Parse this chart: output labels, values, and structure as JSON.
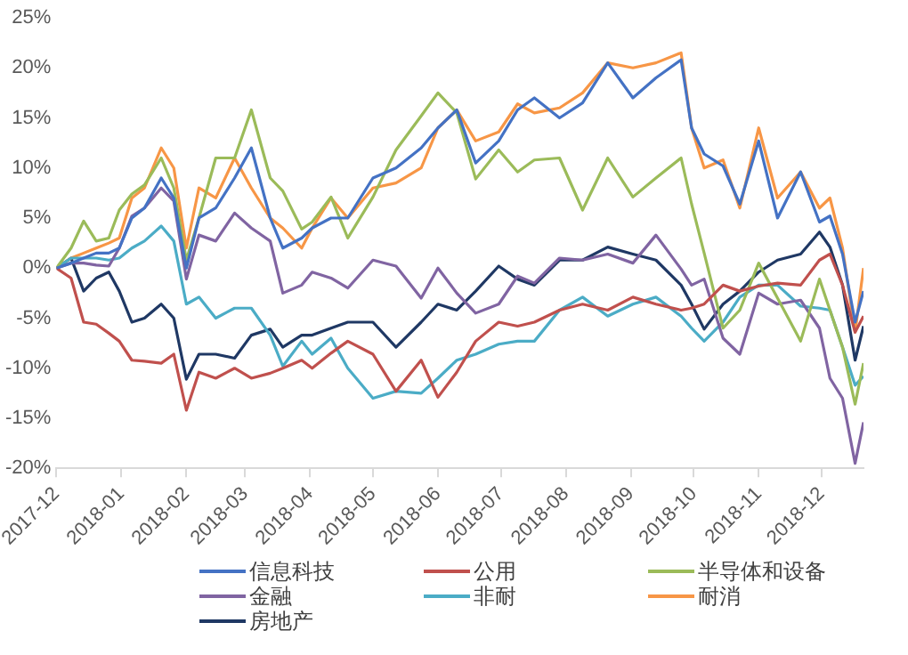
{
  "chart_data": {
    "type": "line",
    "x": [
      "2017-12-01",
      "2017-12-08",
      "2017-12-14",
      "2017-12-20",
      "2017-12-26",
      "2017-12-31",
      "2018-01-06",
      "2018-01-12",
      "2018-01-20",
      "2018-01-26",
      "2018-02-01",
      "2018-02-07",
      "2018-02-15",
      "2018-02-24",
      "2018-03-04",
      "2018-03-13",
      "2018-03-19",
      "2018-03-28",
      "2018-04-02",
      "2018-04-11",
      "2018-04-19",
      "2018-05-01",
      "2018-05-12",
      "2018-05-24",
      "2018-06-01",
      "2018-06-10",
      "2018-06-19",
      "2018-06-30",
      "2018-07-09",
      "2018-07-17",
      "2018-07-29",
      "2018-08-09",
      "2018-08-21",
      "2018-09-02",
      "2018-09-13",
      "2018-09-25",
      "2018-09-30",
      "2018-10-06",
      "2018-10-15",
      "2018-10-23",
      "2018-11-01",
      "2018-11-10",
      "2018-11-21",
      "2018-11-30",
      "2018-12-05",
      "2018-12-11",
      "2018-12-17",
      "2018-12-21"
    ],
    "series": [
      {
        "name": "信息科技",
        "color": "#4472c4",
        "values": [
          0,
          0.5,
          1,
          1.5,
          1.5,
          2,
          5,
          6,
          9,
          7,
          0,
          5,
          6,
          9,
          12,
          5,
          2,
          3,
          4,
          5,
          5,
          9,
          10,
          12,
          14,
          15.8,
          10.5,
          12.7,
          15.8,
          17,
          15,
          16.5,
          20.5,
          17,
          19,
          20.8,
          14,
          11.4,
          10.2,
          6.4,
          12.7,
          5,
          9.6,
          4.6,
          5.2,
          1.4,
          -5.4,
          -2.3
        ]
      },
      {
        "name": "公用",
        "color": "#c0504d",
        "values": [
          0,
          -1,
          -5.4,
          -5.6,
          -6.5,
          -7.3,
          -9.2,
          -9.3,
          -9.5,
          -8.6,
          -14.2,
          -10.4,
          -11,
          -10,
          -11,
          -10.5,
          -10,
          -9.2,
          -10,
          -8.5,
          -7.3,
          -8.6,
          -12.3,
          -9.2,
          -12.9,
          -10.4,
          -7.3,
          -5.4,
          -5.8,
          -5.4,
          -4.2,
          -3.6,
          -4.2,
          -2.9,
          -3.6,
          -4.2,
          -4,
          -3.6,
          -1.7,
          -2.3,
          -1.8,
          -1.5,
          -1.7,
          0.8,
          1.4,
          -1.7,
          -6.4,
          -4.8
        ]
      },
      {
        "name": "半导体和设备",
        "color": "#9bbb59",
        "values": [
          0,
          2,
          4.7,
          2.7,
          3,
          5.8,
          7.4,
          8.3,
          11,
          8,
          0.8,
          5,
          11,
          11,
          15.8,
          9,
          7.7,
          3.9,
          4.6,
          7.1,
          3,
          7.1,
          11.8,
          15.2,
          17.5,
          15.5,
          8.9,
          11.8,
          9.6,
          10.8,
          11,
          5.8,
          11,
          7.1,
          9,
          11,
          6.4,
          1.5,
          -6,
          -4.2,
          0.5,
          -3,
          -7.3,
          -1.1,
          -4.2,
          -7.9,
          -13.6,
          -9.5
        ]
      },
      {
        "name": "金融",
        "color": "#8064a2",
        "values": [
          0,
          0.5,
          0.5,
          0.3,
          0.2,
          2,
          5.2,
          6,
          8,
          6.7,
          -1.1,
          3.3,
          2.7,
          5.5,
          4,
          2.7,
          -2.5,
          -1.7,
          -0.4,
          -1,
          -2,
          0.8,
          0.2,
          -3,
          0,
          -2.5,
          -4.5,
          -3.6,
          -0.8,
          -1.5,
          1,
          0.8,
          1.4,
          0.5,
          3.3,
          -0.1,
          -1.7,
          -1.1,
          -7,
          -8.6,
          -2.5,
          -3.6,
          -3.2,
          -6,
          -11,
          -13,
          -19.5,
          -15.4
        ]
      },
      {
        "name": "非耐",
        "color": "#4bacc6",
        "values": [
          0,
          1,
          1,
          1,
          0.8,
          1,
          2,
          2.7,
          4.2,
          2.7,
          -3.6,
          -2.9,
          -5,
          -4,
          -4,
          -6.7,
          -9.8,
          -7.3,
          -8.6,
          -7,
          -10,
          -13,
          -12.3,
          -12.5,
          -11,
          -9.2,
          -8.6,
          -7.6,
          -7.3,
          -7.3,
          -4.2,
          -2.9,
          -4.8,
          -3.6,
          -2.9,
          -4.8,
          -6,
          -7.3,
          -5.4,
          -2.9,
          -1.7,
          -1.7,
          -3.8,
          -4,
          -4.2,
          -7.9,
          -11.7,
          -10.8
        ]
      },
      {
        "name": "耐消",
        "color": "#f79646",
        "values": [
          0,
          1,
          1.5,
          2,
          2.5,
          3,
          7,
          8,
          12,
          10,
          2,
          8,
          7,
          11,
          8,
          5,
          4,
          2,
          4,
          7,
          5,
          8,
          8.5,
          10,
          14,
          15.8,
          12.7,
          13.6,
          16.4,
          15.5,
          16,
          17.5,
          20.5,
          20,
          20.5,
          21.5,
          14,
          10,
          10.8,
          6,
          14,
          7,
          9.6,
          6,
          7,
          2,
          -6.4,
          0
        ]
      },
      {
        "name": "房地产",
        "color": "#1f3864",
        "values": [
          0,
          1,
          -2.3,
          -1,
          -0.4,
          -2.3,
          -5.4,
          -5,
          -3.6,
          -5,
          -11.1,
          -8.6,
          -8.6,
          -9,
          -6.7,
          -6.1,
          -7.9,
          -6.7,
          -6.7,
          -6,
          -5.4,
          -5.4,
          -7.9,
          -5.4,
          -3.6,
          -4.2,
          -2.3,
          0.2,
          -1.1,
          -1.7,
          0.8,
          0.8,
          2.1,
          1.4,
          0.8,
          -1.7,
          -3.6,
          -6.1,
          -3.6,
          -2.3,
          -0.4,
          0.8,
          1.4,
          3.6,
          2.1,
          -1.7,
          -9.2,
          -5.8
        ]
      }
    ],
    "xlim": [
      "2017-12",
      "2018-12-21"
    ],
    "xticks": [
      "2017-12",
      "2018-01",
      "2018-02",
      "2018-03",
      "2018-04",
      "2018-05",
      "2018-06",
      "2018-07",
      "2018-08",
      "2018-09",
      "2018-10",
      "2018-11",
      "2018-12"
    ],
    "ylim": [
      -20,
      25
    ],
    "yticks": [
      {
        "value": -20,
        "label": "-20%"
      },
      {
        "value": -15,
        "label": "-15%"
      },
      {
        "value": -10,
        "label": "-10%"
      },
      {
        "value": -5,
        "label": "-5%"
      },
      {
        "value": 0,
        "label": "0%"
      },
      {
        "value": 5,
        "label": "5%"
      },
      {
        "value": 10,
        "label": "10%"
      },
      {
        "value": 15,
        "label": "15%"
      },
      {
        "value": 20,
        "label": "20%"
      },
      {
        "value": 25,
        "label": "25%"
      }
    ],
    "grid": false,
    "legend": "bottom",
    "marker": "none",
    "line_style": "solid"
  }
}
